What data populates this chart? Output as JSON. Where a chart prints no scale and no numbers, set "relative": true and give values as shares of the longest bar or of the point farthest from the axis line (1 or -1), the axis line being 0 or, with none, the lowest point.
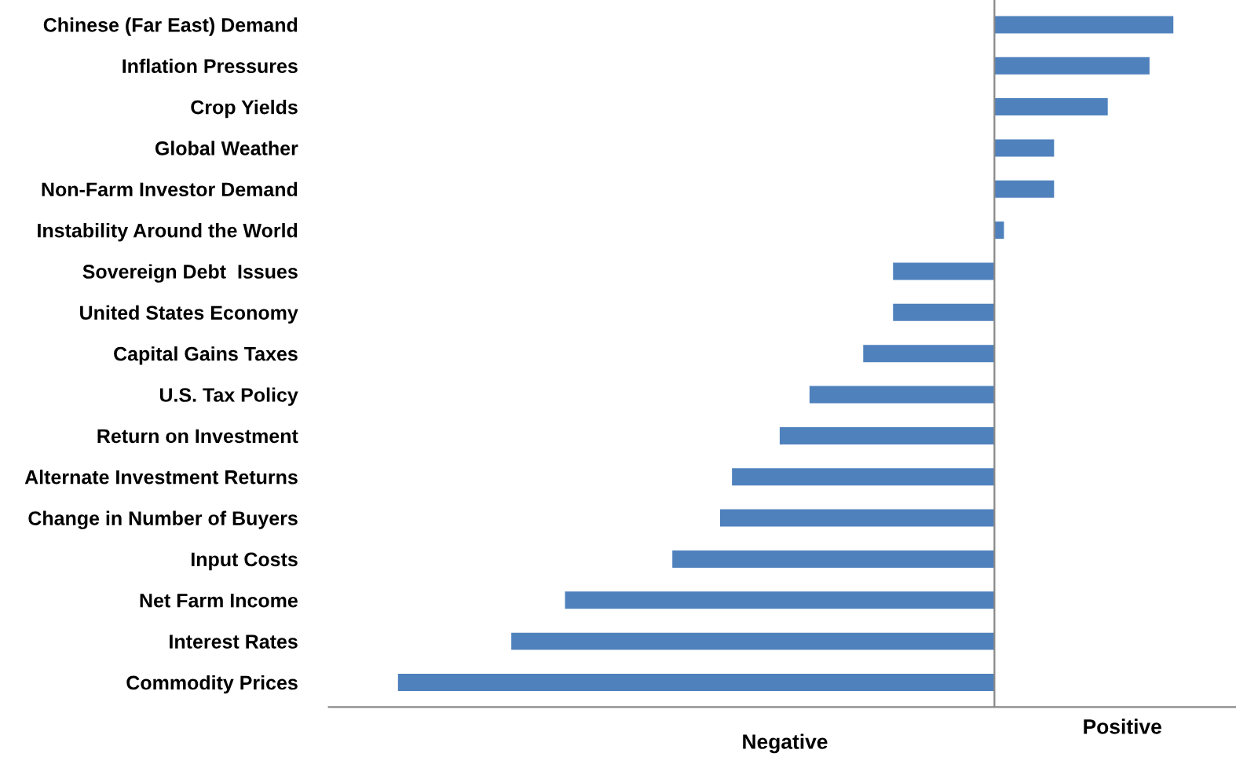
{
  "chart_data": {
    "type": "bar",
    "orientation": "horizontal",
    "relative": true,
    "grid": false,
    "categories": [
      "Chinese (Far East) Demand",
      "Inflation Pressures",
      "Crop Yields",
      "Global Weather",
      "Non-Farm Investor Demand",
      "Instability Around the World",
      "Sovereign Debt  Issues",
      "United States Economy",
      "Capital Gains Taxes",
      "U.S. Tax Policy",
      "Return on Investment",
      "Alternate Investment Returns",
      "Change in Number of Buyers",
      "Input Costs",
      "Net Farm Income",
      "Interest Rates",
      "Commodity Prices"
    ],
    "series": [
      {
        "color": "#4f81bd",
        "values": [
          0.3,
          0.26,
          0.19,
          0.1,
          0.1,
          0.016,
          -0.17,
          -0.17,
          -0.22,
          -0.31,
          -0.36,
          -0.44,
          -0.46,
          -0.54,
          -0.72,
          -0.81,
          -1
        ]
      }
    ],
    "annotations": [
      "Negative",
      "Positive"
    ]
  }
}
